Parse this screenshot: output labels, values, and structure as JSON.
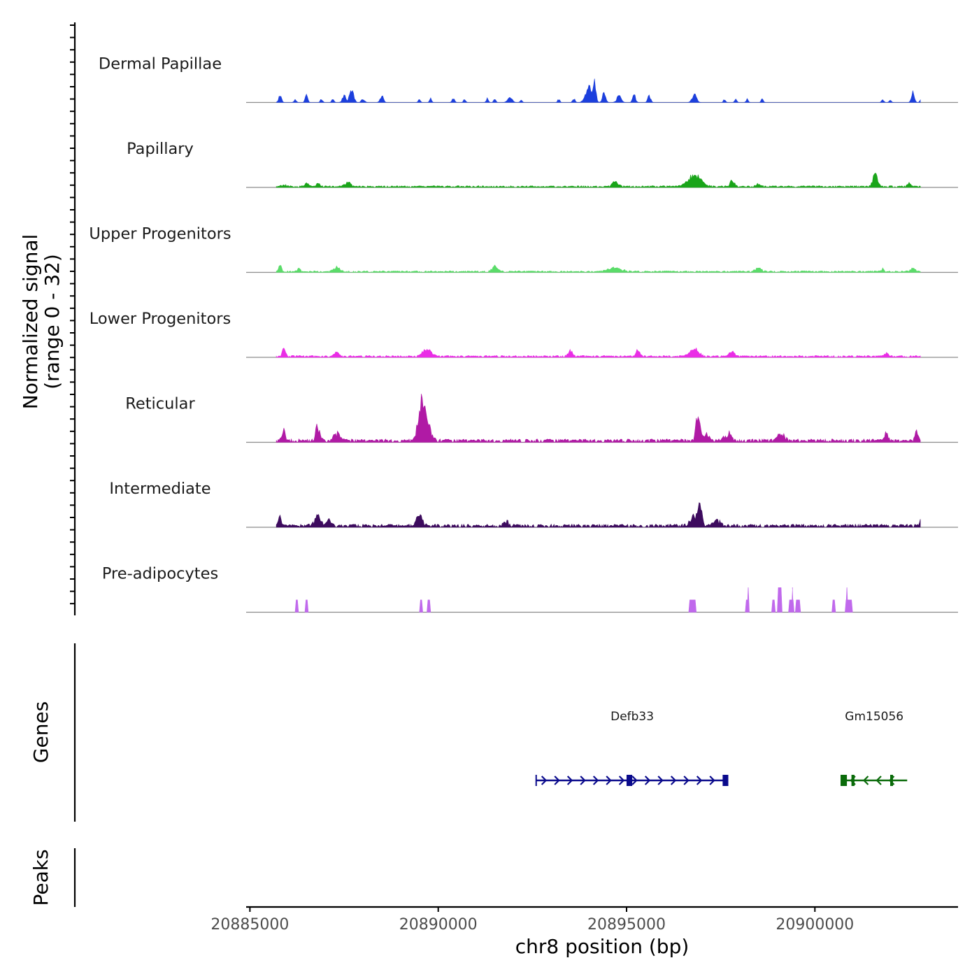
{
  "chart_data": {
    "type": "area",
    "title": "",
    "xlabel": "chr8 position (bp)",
    "ylabel_line1": "Normalized signal",
    "ylabel_line2": "(range 0 - 32)",
    "y_range": [
      0,
      32
    ],
    "x_range": [
      20884900,
      20903800
    ],
    "x_data_range": [
      20885700,
      20902800
    ],
    "x_ticks": [
      20885000,
      20890000,
      20895000,
      20900000
    ],
    "x_tick_labels": [
      "20885000",
      "20890000",
      "20895000",
      "20900000"
    ],
    "series": [
      {
        "name": "Dermal Papillae",
        "color": "#1c3fdd",
        "baseline_noise": 0.0,
        "peaks": [
          {
            "center": 20885800,
            "width": 80,
            "height": 10
          },
          {
            "center": 20886200,
            "width": 60,
            "height": 5
          },
          {
            "center": 20886500,
            "width": 70,
            "height": 11
          },
          {
            "center": 20886900,
            "width": 60,
            "height": 6
          },
          {
            "center": 20887200,
            "width": 60,
            "height": 6
          },
          {
            "center": 20887500,
            "width": 90,
            "height": 12
          },
          {
            "center": 20887700,
            "width": 110,
            "height": 21
          },
          {
            "center": 20888000,
            "width": 90,
            "height": 5
          },
          {
            "center": 20888500,
            "width": 90,
            "height": 10
          },
          {
            "center": 20889500,
            "width": 60,
            "height": 5
          },
          {
            "center": 20889800,
            "width": 60,
            "height": 6
          },
          {
            "center": 20890400,
            "width": 70,
            "height": 6
          },
          {
            "center": 20890700,
            "width": 60,
            "height": 5
          },
          {
            "center": 20891300,
            "width": 60,
            "height": 6
          },
          {
            "center": 20891500,
            "width": 60,
            "height": 5
          },
          {
            "center": 20891900,
            "width": 120,
            "height": 9
          },
          {
            "center": 20892200,
            "width": 60,
            "height": 4
          },
          {
            "center": 20893200,
            "width": 60,
            "height": 5
          },
          {
            "center": 20893600,
            "width": 70,
            "height": 6
          },
          {
            "center": 20894000,
            "width": 180,
            "height": 22
          },
          {
            "center": 20894150,
            "width": 70,
            "height": 32
          },
          {
            "center": 20894400,
            "width": 90,
            "height": 14
          },
          {
            "center": 20894800,
            "width": 120,
            "height": 10
          },
          {
            "center": 20895200,
            "width": 80,
            "height": 12
          },
          {
            "center": 20895600,
            "width": 80,
            "height": 10
          },
          {
            "center": 20896800,
            "width": 120,
            "height": 12
          },
          {
            "center": 20897600,
            "width": 60,
            "height": 5
          },
          {
            "center": 20897900,
            "width": 60,
            "height": 5
          },
          {
            "center": 20898200,
            "width": 60,
            "height": 5
          },
          {
            "center": 20898600,
            "width": 60,
            "height": 5
          },
          {
            "center": 20901800,
            "width": 60,
            "height": 5
          },
          {
            "center": 20902000,
            "width": 60,
            "height": 5
          },
          {
            "center": 20902600,
            "width": 80,
            "height": 16
          },
          {
            "center": 20902800,
            "width": 40,
            "height": 5
          }
        ]
      },
      {
        "name": "Papillary",
        "color": "#1aa51a",
        "baseline_noise": 1.6,
        "peaks": [
          {
            "center": 20885900,
            "width": 120,
            "height": 3
          },
          {
            "center": 20886500,
            "width": 100,
            "height": 6
          },
          {
            "center": 20886800,
            "width": 100,
            "height": 5
          },
          {
            "center": 20887600,
            "width": 150,
            "height": 7
          },
          {
            "center": 20894700,
            "width": 150,
            "height": 8
          },
          {
            "center": 20896800,
            "width": 330,
            "height": 19
          },
          {
            "center": 20897800,
            "width": 120,
            "height": 9
          },
          {
            "center": 20898500,
            "width": 120,
            "height": 5
          },
          {
            "center": 20901600,
            "width": 140,
            "height": 20
          },
          {
            "center": 20902500,
            "width": 100,
            "height": 5
          }
        ]
      },
      {
        "name": "Upper Progenitors",
        "color": "#5adc69",
        "baseline_noise": 1.5,
        "peaks": [
          {
            "center": 20885800,
            "width": 80,
            "height": 9
          },
          {
            "center": 20886300,
            "width": 80,
            "height": 5
          },
          {
            "center": 20887300,
            "width": 150,
            "height": 7
          },
          {
            "center": 20891500,
            "width": 150,
            "height": 8
          },
          {
            "center": 20894700,
            "width": 350,
            "height": 6
          },
          {
            "center": 20898500,
            "width": 150,
            "height": 8
          },
          {
            "center": 20901800,
            "width": 80,
            "height": 5
          },
          {
            "center": 20902600,
            "width": 120,
            "height": 7
          }
        ]
      },
      {
        "name": "Lower Progenitors",
        "color": "#ea2de6",
        "baseline_noise": 1.8,
        "peaks": [
          {
            "center": 20885900,
            "width": 100,
            "height": 11
          },
          {
            "center": 20887300,
            "width": 120,
            "height": 6
          },
          {
            "center": 20889700,
            "width": 220,
            "height": 13
          },
          {
            "center": 20893500,
            "width": 120,
            "height": 9
          },
          {
            "center": 20895300,
            "width": 120,
            "height": 9
          },
          {
            "center": 20896800,
            "width": 260,
            "height": 11
          },
          {
            "center": 20897800,
            "width": 150,
            "height": 8
          },
          {
            "center": 20901900,
            "width": 100,
            "height": 5
          }
        ]
      },
      {
        "name": "Reticular",
        "color": "#b01aa5",
        "baseline_noise": 3.2,
        "peaks": [
          {
            "center": 20885900,
            "width": 100,
            "height": 14
          },
          {
            "center": 20886800,
            "width": 120,
            "height": 23
          },
          {
            "center": 20887300,
            "width": 180,
            "height": 12
          },
          {
            "center": 20889550,
            "width": 180,
            "height": 55
          },
          {
            "center": 20889700,
            "width": 200,
            "height": 28
          },
          {
            "center": 20896900,
            "width": 110,
            "height": 43
          },
          {
            "center": 20897100,
            "width": 160,
            "height": 10
          },
          {
            "center": 20897700,
            "width": 180,
            "height": 12
          },
          {
            "center": 20899100,
            "width": 200,
            "height": 10
          },
          {
            "center": 20901900,
            "width": 100,
            "height": 12
          },
          {
            "center": 20902700,
            "width": 80,
            "height": 16
          }
        ]
      },
      {
        "name": "Intermediate",
        "color": "#3d0b5e",
        "baseline_noise": 3.0,
        "peaks": [
          {
            "center": 20885800,
            "width": 80,
            "height": 15
          },
          {
            "center": 20886800,
            "width": 180,
            "height": 14
          },
          {
            "center": 20887100,
            "width": 120,
            "height": 10
          },
          {
            "center": 20889500,
            "width": 200,
            "height": 14
          },
          {
            "center": 20891800,
            "width": 150,
            "height": 7
          },
          {
            "center": 20896950,
            "width": 120,
            "height": 27
          },
          {
            "center": 20896800,
            "width": 220,
            "height": 14
          },
          {
            "center": 20897400,
            "width": 180,
            "height": 8
          },
          {
            "center": 20902800,
            "width": 30,
            "height": 10
          }
        ]
      },
      {
        "name": "Pre-adipocytes",
        "color": "#c069ec",
        "baseline_noise": 0.0,
        "blocks": [
          {
            "start": 20886200,
            "end": 20886290,
            "height": 20
          },
          {
            "start": 20886460,
            "end": 20886550,
            "height": 20
          },
          {
            "start": 20889500,
            "end": 20889590,
            "height": 20
          },
          {
            "start": 20889700,
            "end": 20889800,
            "height": 20
          },
          {
            "start": 20896650,
            "end": 20896850,
            "height": 20
          },
          {
            "start": 20898150,
            "end": 20898250,
            "height": 20
          },
          {
            "start": 20898200,
            "end": 20898260,
            "height": 40
          },
          {
            "start": 20898850,
            "end": 20898950,
            "height": 20
          },
          {
            "start": 20899000,
            "end": 20899130,
            "height": 40
          },
          {
            "start": 20899300,
            "end": 20899450,
            "height": 20
          },
          {
            "start": 20899380,
            "end": 20899430,
            "height": 40
          },
          {
            "start": 20899480,
            "end": 20899620,
            "height": 20
          },
          {
            "start": 20900450,
            "end": 20900550,
            "height": 20
          },
          {
            "start": 20900800,
            "end": 20901000,
            "height": 20
          },
          {
            "start": 20900820,
            "end": 20900880,
            "height": 40
          }
        ]
      }
    ],
    "track_titles": {
      "genes": "Genes",
      "peaks": "Peaks"
    },
    "genes": [
      {
        "name": "Defb33",
        "start": 20892600,
        "end": 20897700,
        "strand": "+",
        "color": "#0a0a8c",
        "exons": [
          [
            20895000,
            20895150
          ],
          [
            20897550,
            20897700
          ]
        ]
      },
      {
        "name": "Gm15056",
        "start": 20900700,
        "end": 20902450,
        "strand": "-",
        "color": "#0a6b0a",
        "exons": [
          [
            20900700,
            20900850
          ],
          [
            20900970,
            20901050
          ],
          [
            20902000,
            20902060
          ]
        ]
      }
    ]
  }
}
